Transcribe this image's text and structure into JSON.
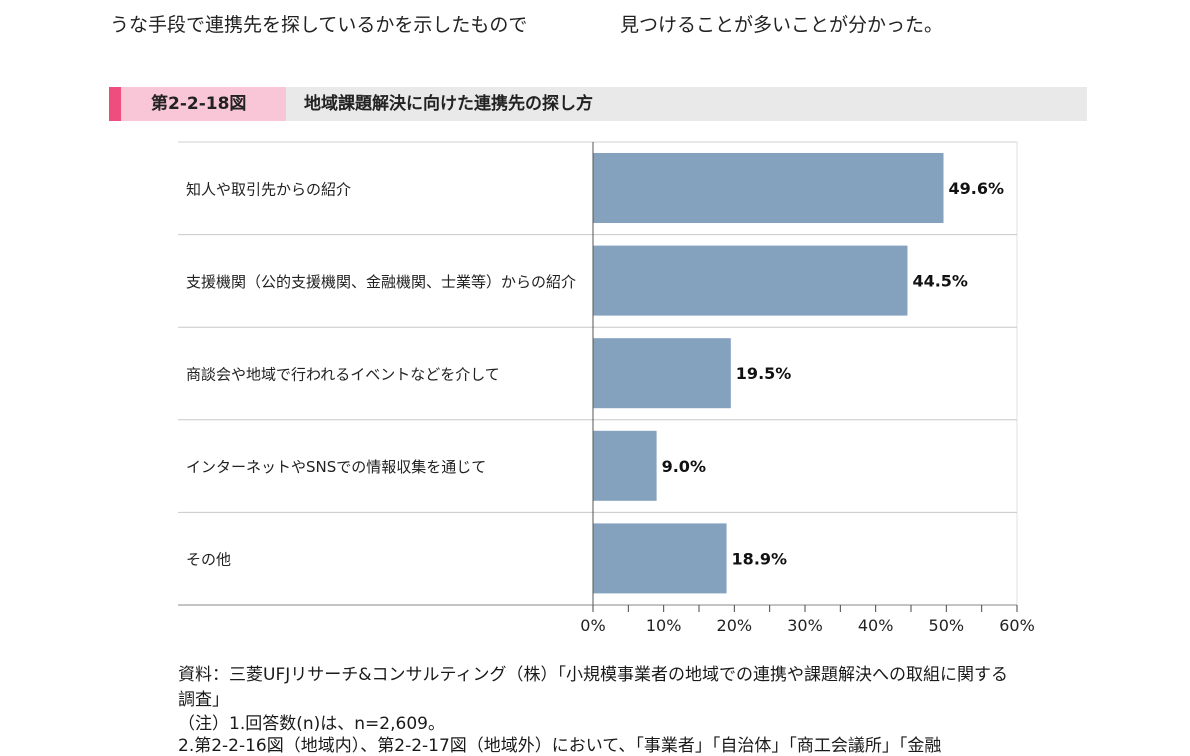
{
  "intro": {
    "left": "うな手段で連携先を探しているかを示したもので",
    "right": "見つけることが多いことが分かった。"
  },
  "figure": {
    "number": "第2-2-18図",
    "title": "地域課題解決に向けた連携先の探し方"
  },
  "colors": {
    "bar": "#84a2be",
    "accent": "#ee4d7e",
    "number_bg": "#f8c6d6",
    "header_bg": "#e9e9e9"
  },
  "chart_data": {
    "type": "bar",
    "orientation": "horizontal",
    "categories": [
      "知人や取引先からの紹介",
      "支援機関（公的支援機関、金融機関、士業等）からの紹介",
      "商談会や地域で行われるイベントなどを介して",
      "インターネットやSNSでの情報収集を通じて",
      "その他"
    ],
    "values": [
      49.6,
      44.5,
      19.5,
      9.0,
      18.9
    ],
    "value_labels": [
      "49.6%",
      "44.5%",
      "19.5%",
      "9.0%",
      "18.9%"
    ],
    "xlim": [
      0,
      60
    ],
    "xticks": [
      "0%",
      "10%",
      "20%",
      "30%",
      "40%",
      "50%",
      "60%"
    ],
    "xtick_values": [
      0,
      10,
      20,
      30,
      40,
      50,
      60
    ],
    "grid": false
  },
  "footer": {
    "source_line1": "資料：三菱UFJリサーチ&コンサルティング（株）「小規模事業者の地域での連携や課題解決への取組に関する",
    "source_line2": "調査」",
    "note1": "（注）1.回答数(n)は、n=2,609。",
    "note2": "2.第2-2-16図（地域内）、第2-2-17図（地域外）において、「事業者」「自治体」「商工会議所」「金融"
  }
}
